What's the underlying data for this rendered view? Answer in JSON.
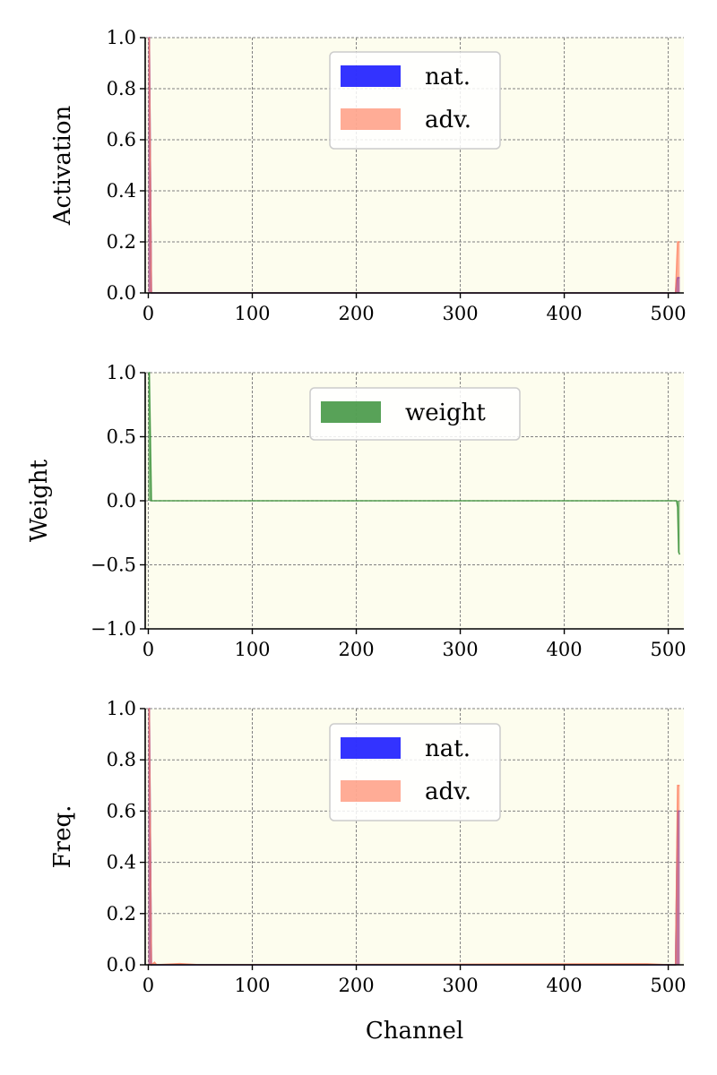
{
  "colors": {
    "background": "#fdfdee",
    "grid": "#808080",
    "nat": "#0000ff",
    "adv": "#ff8060",
    "weight": "#2e8b2e"
  },
  "chart_data": [
    {
      "type": "area",
      "ylabel": "Activation",
      "xlim": [
        -3,
        515
      ],
      "ylim": [
        0,
        1
      ],
      "xticks": [
        0,
        100,
        200,
        300,
        400,
        500
      ],
      "ytick_labels": [
        "0.0",
        "0.2",
        "0.4",
        "0.6",
        "0.8",
        "1.0"
      ],
      "grid": true,
      "legend": "top-center",
      "series": [
        {
          "name": "nat.",
          "color_key": "nat",
          "points": [
            [
              0,
              1.0
            ],
            [
              1,
              1.0
            ],
            [
              2,
              0.5
            ],
            [
              3,
              0.0
            ],
            [
              507,
              0.0
            ],
            [
              508,
              0.05
            ],
            [
              509,
              0.06
            ],
            [
              510,
              0.06
            ],
            [
              511,
              0.06
            ]
          ]
        },
        {
          "name": "adv.",
          "color_key": "adv",
          "points": [
            [
              0,
              1.0
            ],
            [
              1,
              1.0
            ],
            [
              2,
              0.5
            ],
            [
              3,
              0.0
            ],
            [
              507,
              0.0
            ],
            [
              508,
              0.1
            ],
            [
              509,
              0.2
            ],
            [
              510,
              0.2
            ],
            [
              511,
              0.2
            ]
          ]
        }
      ]
    },
    {
      "type": "area",
      "ylabel": "Weight",
      "xlim": [
        -3,
        515
      ],
      "ylim": [
        -1,
        1
      ],
      "xticks": [
        0,
        100,
        200,
        300,
        400,
        500
      ],
      "ytick_labels": [
        "−1.0",
        "−0.5",
        "0.0",
        "0.5",
        "1.0"
      ],
      "grid": true,
      "legend": "top-center",
      "series": [
        {
          "name": "weight",
          "color_key": "weight",
          "points": [
            [
              0,
              1.0
            ],
            [
              1,
              1.0
            ],
            [
              2,
              0.5
            ],
            [
              3,
              0.0
            ],
            [
              508,
              0.0
            ],
            [
              509,
              -0.05
            ],
            [
              510,
              -0.4
            ],
            [
              511,
              -0.42
            ]
          ]
        }
      ]
    },
    {
      "type": "area",
      "ylabel": "Freq.",
      "xlabel": "Channel",
      "xlim": [
        -3,
        515
      ],
      "ylim": [
        0,
        1
      ],
      "xticks": [
        0,
        100,
        200,
        300,
        400,
        500
      ],
      "ytick_labels": [
        "0.0",
        "0.2",
        "0.4",
        "0.6",
        "0.8",
        "1.0"
      ],
      "grid": true,
      "legend": "top-center",
      "series": [
        {
          "name": "nat.",
          "color_key": "nat",
          "points": [
            [
              0,
              1.0
            ],
            [
              1,
              1.0
            ],
            [
              2,
              0.5
            ],
            [
              3,
              0.0
            ],
            [
              507,
              0.0
            ],
            [
              508,
              0.3
            ],
            [
              509,
              0.6
            ],
            [
              510,
              0.6
            ],
            [
              511,
              0.6
            ]
          ]
        },
        {
          "name": "adv.",
          "color_key": "adv",
          "points": [
            [
              0,
              1.0
            ],
            [
              1,
              1.0
            ],
            [
              2,
              0.5
            ],
            [
              3,
              0.0
            ],
            [
              6,
              0.01
            ],
            [
              8,
              0.0
            ],
            [
              30,
              0.005
            ],
            [
              50,
              0.0
            ],
            [
              480,
              0.004
            ],
            [
              500,
              0.0
            ],
            [
              507,
              0.0
            ],
            [
              508,
              0.35
            ],
            [
              509,
              0.7
            ],
            [
              510,
              0.7
            ],
            [
              511,
              0.7
            ]
          ]
        }
      ]
    }
  ]
}
